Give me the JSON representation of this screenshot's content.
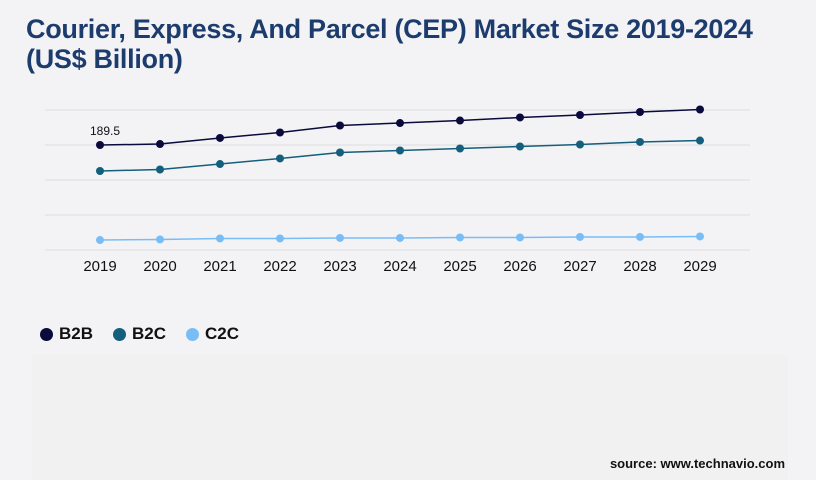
{
  "chart_data": {
    "type": "line",
    "title": "Courier, Express, And Parcel (CEP) Market Size 2019-2024 (US$ Billion)",
    "categories": [
      "2019",
      "2020",
      "2021",
      "2022",
      "2023",
      "2024",
      "2025",
      "2026",
      "2027",
      "2028",
      "2029"
    ],
    "series": [
      {
        "name": "B2B",
        "color": "#0a0a3c",
        "values": [
          189.5,
          191.3,
          202.2,
          212.1,
          224.7,
          229.2,
          233.7,
          239.2,
          243.7,
          249.1,
          253.6
        ]
      },
      {
        "name": "B2C",
        "color": "#135f7c",
        "values": [
          142.6,
          145.3,
          155.2,
          165.2,
          176.0,
          179.6,
          183.2,
          186.8,
          190.4,
          195.0,
          197.6
        ]
      },
      {
        "name": "C2C",
        "color": "#79bdf7",
        "values": [
          18.0,
          19.0,
          20.8,
          20.8,
          21.7,
          21.7,
          22.6,
          22.6,
          23.5,
          23.5,
          24.4
        ]
      }
    ],
    "annotations": [
      {
        "series": "B2B",
        "category": "2019",
        "text": "189.5"
      }
    ],
    "ylim": [
      0,
      252.7
    ],
    "grid": true,
    "legend": "bottom-left"
  },
  "source": "source: www.technavio.com"
}
